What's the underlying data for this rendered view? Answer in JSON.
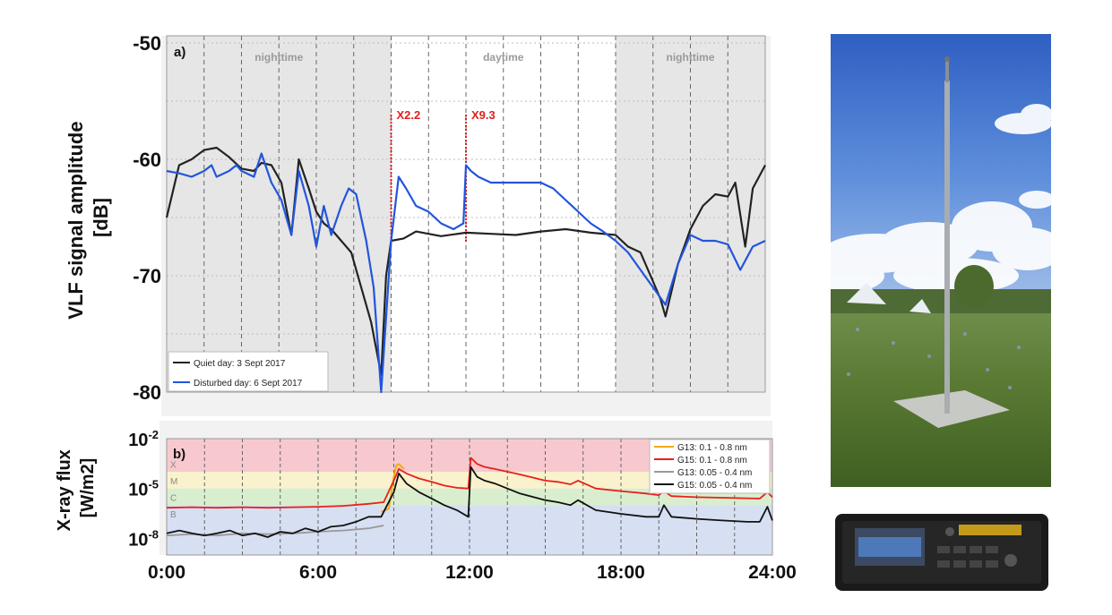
{
  "chart_data": [
    {
      "panel": "a)",
      "type": "line",
      "ylabel": "VLF signal amplitude [dB]",
      "ylim": [
        -80,
        -50
      ],
      "yticks": [
        "-50",
        "-60",
        "-70",
        "-80"
      ],
      "xlim": [
        0,
        24
      ],
      "shading": [
        {
          "label": "nighttime",
          "from": 0,
          "to": 9
        },
        {
          "label": "daytime",
          "from": 9,
          "to": 18
        },
        {
          "label": "nighttime",
          "from": 18,
          "to": 24
        }
      ],
      "annotations": [
        {
          "label": "X2.2",
          "x": 9.0
        },
        {
          "label": "X9.3",
          "x": 12.0
        }
      ],
      "series": [
        {
          "name": "Quiet day: 3 Sept 2017",
          "color": "#222222",
          "x": [
            0,
            0.5,
            1,
            1.5,
            2,
            2.5,
            3,
            3.5,
            3.8,
            4.2,
            4.6,
            5.0,
            5.3,
            5.7,
            6.0,
            6.3,
            6.6,
            7.0,
            7.4,
            7.8,
            8.2,
            8.6,
            8.8,
            9.0,
            9.5,
            10,
            11,
            12,
            13,
            14,
            15,
            16,
            17,
            18,
            18.5,
            19,
            19.5,
            19.8,
            20.0,
            20.5,
            21,
            21.5,
            22,
            22.5,
            22.8,
            23.2,
            23.5,
            24
          ],
          "y": [
            -65,
            -60.5,
            -60,
            -59.2,
            -59,
            -59.8,
            -60.8,
            -61,
            -60.3,
            -60.5,
            -62,
            -66.5,
            -60,
            -62.5,
            -64.5,
            -65.5,
            -66,
            -67,
            -68,
            -71,
            -74,
            -78.5,
            -70,
            -67,
            -66.8,
            -66.2,
            -66.6,
            -66.3,
            -66.4,
            -66.5,
            -66.2,
            -66,
            -66.3,
            -66.5,
            -67.5,
            -68,
            -70.5,
            -72,
            -73.5,
            -69,
            -66,
            -64,
            -63,
            -63.2,
            -62,
            -67.5,
            -62.5,
            -60.5
          ]
        },
        {
          "name": "Disturbed day: 6 Sept 2017",
          "color": "#2255dd",
          "x": [
            0,
            0.5,
            1,
            1.5,
            1.8,
            2,
            2.5,
            2.8,
            3.0,
            3.5,
            3.8,
            4.2,
            4.6,
            5.0,
            5.3,
            5.7,
            6.0,
            6.3,
            6.6,
            7.0,
            7.3,
            7.6,
            8.0,
            8.3,
            8.6,
            9.0,
            9.3,
            9.6,
            10,
            10.5,
            11,
            11.5,
            11.9,
            12.0,
            12.2,
            12.5,
            13,
            14,
            15,
            15.5,
            16,
            16.5,
            17,
            17.5,
            18,
            18.5,
            19,
            19.5,
            20.0,
            20.5,
            21,
            21.5,
            22,
            22.5,
            23,
            23.5,
            24
          ],
          "y": [
            -61,
            -61.2,
            -61.5,
            -61,
            -60.5,
            -61.5,
            -61,
            -60.5,
            -61,
            -61.5,
            -59.5,
            -62,
            -63.5,
            -66.5,
            -61,
            -64,
            -67.5,
            -64,
            -66.5,
            -64,
            -62.5,
            -63,
            -67,
            -71,
            -80,
            -67,
            -61.5,
            -62.5,
            -64,
            -64.5,
            -65.5,
            -66,
            -65.5,
            -60.5,
            -61,
            -61.5,
            -62,
            -62,
            -62,
            -62.5,
            -63.5,
            -64.5,
            -65.5,
            -66.2,
            -67,
            -68,
            -69.5,
            -71,
            -72.5,
            -69,
            -66.5,
            -67,
            -67,
            -67.3,
            -69.5,
            -67.5,
            -67
          ]
        }
      ]
    },
    {
      "panel": "b)",
      "type": "line",
      "ylabel": "X-ray flux [W/m2]",
      "yscale": "log",
      "ylim": [
        1e-09,
        0.01
      ],
      "yticks": [
        "10-2",
        "10-5",
        "10-8"
      ],
      "class_labels": [
        "X",
        "M",
        "C",
        "B"
      ],
      "class_colors": [
        "#f7c9cf",
        "#f9f2cc",
        "#d9eecf",
        "#d7dff2"
      ],
      "xlim": [
        0,
        24
      ],
      "xticks": [
        "0:00",
        "6:00",
        "12:00",
        "18:00",
        "24:00"
      ],
      "series": [
        {
          "name": "G13:  0.1 - 0.8 nm",
          "color": "#f2a900",
          "x": [
            8.5,
            8.8,
            9.0,
            9.1,
            9.2,
            9.4
          ],
          "y": [
            4e-07,
            6e-07,
            5e-05,
            0.00025,
            0.0003,
            0.00015
          ]
        },
        {
          "name": "G15: 0.1 - 0.8 nm",
          "color": "#e8201c",
          "x": [
            0,
            1,
            2,
            3,
            4,
            5,
            6,
            7,
            8,
            8.6,
            9.0,
            9.2,
            9.5,
            10,
            10.5,
            11,
            11.5,
            11.95,
            12.05,
            12.3,
            12.6,
            13,
            14,
            15,
            15.5,
            16,
            16.3,
            17,
            18,
            19,
            19.5,
            19.7,
            20,
            21,
            22,
            23,
            23.5,
            23.8,
            24
          ],
          "y": [
            7e-07,
            7.5e-07,
            7e-07,
            7.5e-07,
            7e-07,
            7.5e-07,
            8e-07,
            9e-07,
            1.2e-06,
            1.5e-06,
            3e-05,
            0.00015,
            8e-05,
            4e-05,
            2.5e-05,
            1.5e-05,
            1.1e-05,
            1e-05,
            0.0007,
            0.0003,
            0.0002,
            0.00015,
            7e-05,
            3e-05,
            2.5e-05,
            1.8e-05,
            3e-05,
            1e-05,
            7e-06,
            5e-06,
            4e-06,
            7e-06,
            3.5e-06,
            3e-06,
            2.8e-06,
            2.6e-06,
            2.5e-06,
            6e-06,
            3e-06
          ]
        },
        {
          "name": "G13: 0.05 - 0.4 nm",
          "color": "#999999",
          "x": [
            0,
            1,
            2,
            3,
            4,
            5,
            6,
            7,
            8,
            8.6
          ],
          "y": [
            1.5e-08,
            1.8e-08,
            1.5e-08,
            2e-08,
            1.8e-08,
            2e-08,
            2.5e-08,
            3e-08,
            4e-08,
            6e-08
          ]
        },
        {
          "name": "G15: 0.05 - 0.4 nm",
          "color": "#111111",
          "x": [
            0,
            0.5,
            1,
            1.5,
            2,
            2.5,
            3,
            3.5,
            4,
            4.5,
            5,
            5.5,
            6,
            6.5,
            7,
            7.5,
            8,
            8.5,
            9.0,
            9.2,
            9.5,
            10,
            10.5,
            11,
            11.5,
            11.95,
            12.05,
            12.3,
            12.6,
            13,
            14,
            15,
            15.5,
            16,
            16.3,
            17,
            18,
            19,
            19.5,
            19.7,
            20,
            21,
            22,
            23,
            23.5,
            23.8,
            24
          ],
          "y": [
            2e-08,
            3e-08,
            2e-08,
            1.5e-08,
            2e-08,
            3e-08,
            1.5e-08,
            2e-08,
            1.2e-08,
            2.5e-08,
            2e-08,
            4e-08,
            2.5e-08,
            5e-08,
            6e-08,
            1e-07,
            2e-07,
            2e-07,
            6e-06,
            8e-05,
            2e-05,
            6e-06,
            2.5e-06,
            1e-06,
            5e-07,
            2e-07,
            0.0002,
            5e-05,
            3e-05,
            2e-05,
            5e-06,
            2e-06,
            1.5e-06,
            1e-06,
            2e-06,
            5e-07,
            3e-07,
            2e-07,
            2e-07,
            1e-06,
            2e-07,
            1.5e-07,
            1.2e-07,
            1e-07,
            1e-07,
            8e-07,
            1.2e-07
          ]
        }
      ]
    }
  ]
}
